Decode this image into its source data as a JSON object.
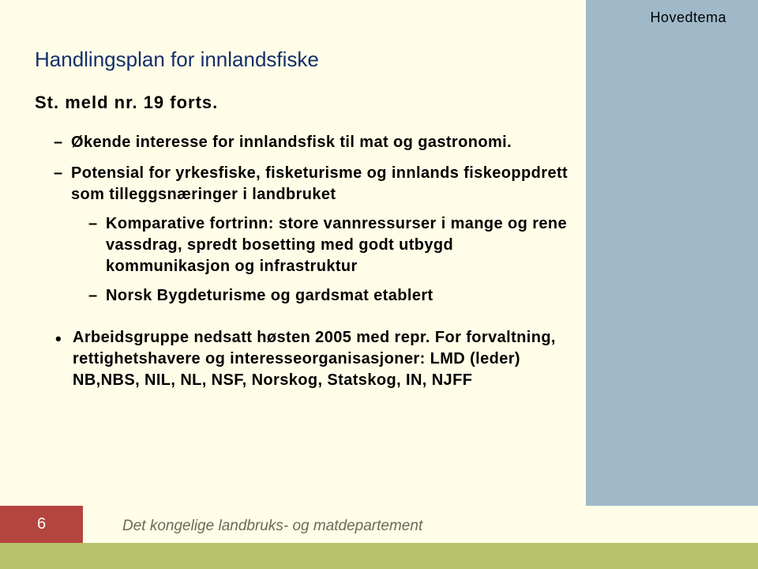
{
  "header": {
    "tag": "Hovedtema"
  },
  "colors": {
    "sidebar": "#9fb9c9",
    "footer_green": "#b6c26a",
    "footer_red": "#b4443e",
    "title": "#152e6c",
    "footer_text": "#6b6b55",
    "background": "#fffde7"
  },
  "title": "Handlingsplan for innlandsfiske",
  "subtitle": "St. meld nr. 19 forts.",
  "bullets": {
    "b1": "Økende interesse for innlandsfisk til mat og gastronomi.",
    "b2": "Potensial for yrkesfiske, fisketurisme og innlands fiskeoppdrett som tilleggsnæringer i landbruket",
    "b2_1": "Komparative fortrinn: store vannressurser i mange og rene vassdrag, spredt bosetting med godt utbygd kommunikasjon og infrastruktur",
    "b2_2": "Norsk Bygdeturisme og gardsmat etablert",
    "dot": "Arbeidsgruppe nedsatt høsten 2005 med repr. For forvaltning, rettighetshavere og interesseorganisasjoner: LMD (leder) NB,NBS, NIL, NL, NSF, Norskog, Statskog, IN, NJFF"
  },
  "footer": {
    "page": "6",
    "org": "Det kongelige landbruks- og matdepartement"
  }
}
